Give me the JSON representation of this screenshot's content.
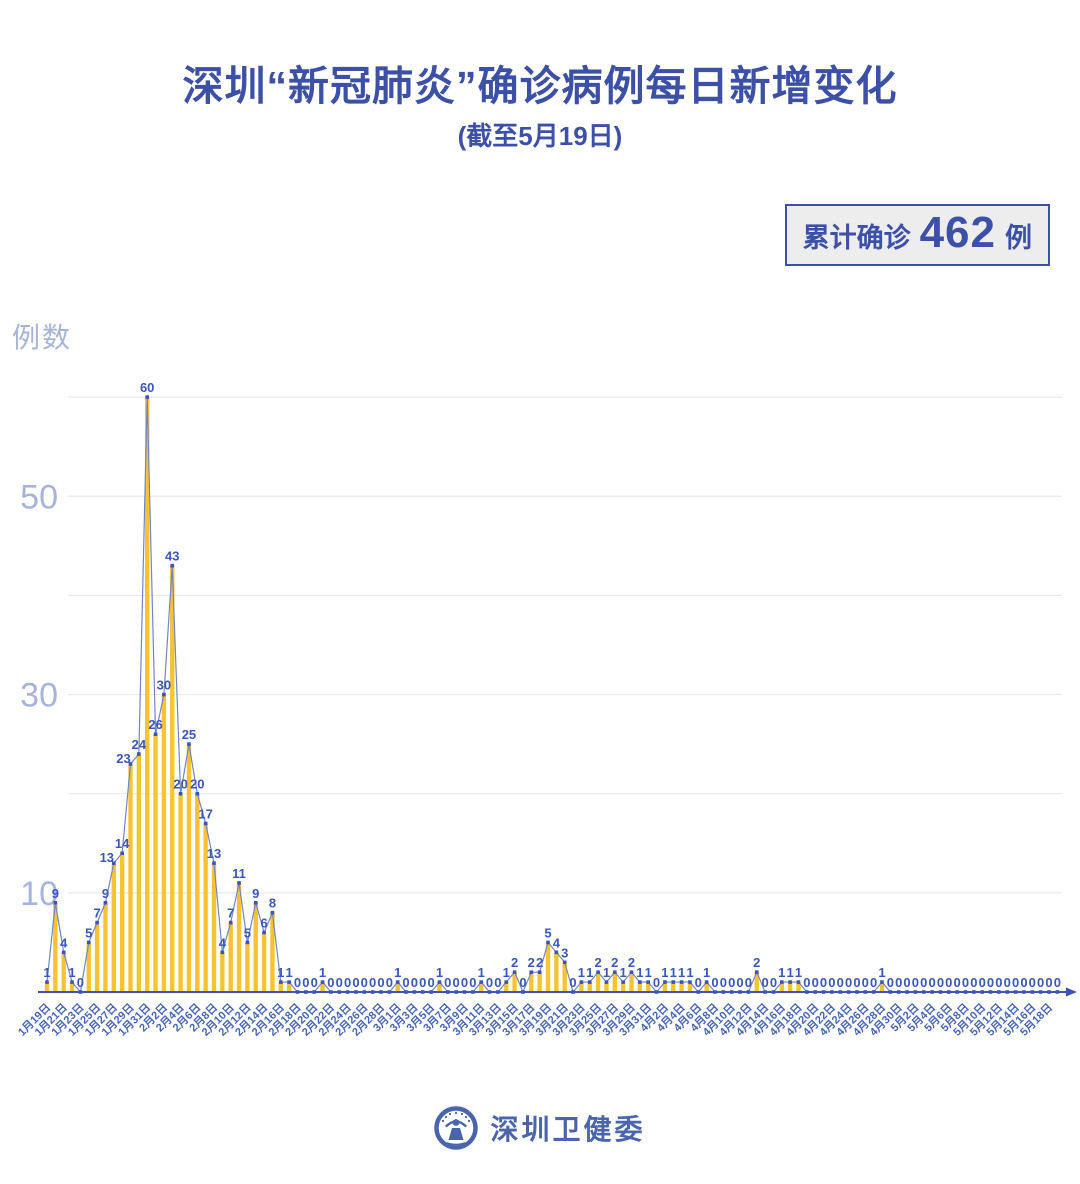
{
  "header": {
    "title": "深圳“新冠肺炎”确诊病例每日新增变化",
    "subtitle": "(截至5月19日)"
  },
  "badge": {
    "prefix": "累计确诊",
    "count": "462",
    "suffix": "例"
  },
  "footer": {
    "brand": "深圳卫健委"
  },
  "colors": {
    "title": "#3D50A8",
    "badge_bg": "#EDEDED",
    "bar": "#F8C333",
    "line": "#7186C6",
    "dot": "#3A55B8",
    "value_label": "#3A57BB",
    "axis": "#3D56B5",
    "date_label": "#4565BB",
    "y_tick": "#A6B3DC",
    "grid": "#E9E9E9",
    "footer": "#4A64AE"
  },
  "chart_data": {
    "type": "bar",
    "overlay_line": true,
    "title": "深圳“新冠肺炎”确诊病例每日新增变化",
    "subtitle": "(截至5月19日)",
    "ylabel": "例数",
    "cumulative_total": 462,
    "date_range": "1月19日 — 5月19日",
    "values": [
      1,
      9,
      4,
      1,
      0,
      5,
      7,
      9,
      13,
      14,
      23,
      24,
      60,
      26,
      30,
      43,
      20,
      25,
      20,
      17,
      13,
      4,
      7,
      11,
      5,
      9,
      6,
      8,
      1,
      1,
      0,
      0,
      0,
      1,
      0,
      0,
      0,
      0,
      0,
      0,
      0,
      0,
      1,
      0,
      0,
      0,
      0,
      1,
      0,
      0,
      0,
      0,
      1,
      0,
      0,
      1,
      2,
      0,
      2,
      2,
      5,
      4,
      3,
      0,
      1,
      1,
      2,
      1,
      2,
      1,
      2,
      1,
      1,
      0,
      1,
      1,
      1,
      1,
      0,
      1,
      0,
      0,
      0,
      0,
      0,
      2,
      0,
      0,
      1,
      1,
      1,
      0,
      0,
      0,
      0,
      0,
      0,
      0,
      0,
      0,
      1,
      0,
      0,
      0,
      0,
      0,
      0,
      0,
      0,
      0,
      0,
      0,
      0,
      0,
      0,
      0,
      0,
      0,
      0,
      0,
      0,
      0
    ],
    "x_tick_labels": [
      "1月19日",
      "1月21日",
      "1月23日",
      "1月25日",
      "1月27日",
      "1月29日",
      "1月31日",
      "2月2日",
      "2月4日",
      "2月6日",
      "2月8日",
      "2月10日",
      "2月12日",
      "2月14日",
      "2月16日",
      "2月18日",
      "2月20日",
      "2月22日",
      "2月24日",
      "2月26日",
      "2月28日",
      "3月1日",
      "3月3日",
      "3月5日",
      "3月7日",
      "3月9日",
      "3月11日",
      "3月13日",
      "3月15日",
      "3月17日",
      "3月19日",
      "3月21日",
      "3月23日",
      "3月25日",
      "3月27日",
      "3月29日",
      "3月31日",
      "4月2日",
      "4月4日",
      "4月6日",
      "4月8日",
      "4月10日",
      "4月12日",
      "4月14日",
      "4月16日",
      "4月18日",
      "4月20日",
      "4月22日",
      "4月24日",
      "4月26日",
      "4月28日",
      "4月30日",
      "5月2日",
      "5月4日",
      "5月6日",
      "5月8日",
      "5月10日",
      "5月12日",
      "5月14日",
      "5月16日",
      "5月18日"
    ],
    "x_tick_every_n_points": 2,
    "y_ticks": [
      10,
      30,
      50
    ],
    "gridlines": [
      10,
      20,
      30,
      40,
      50,
      60
    ],
    "ylim": [
      0,
      62
    ],
    "legend": "none",
    "grid": true
  }
}
